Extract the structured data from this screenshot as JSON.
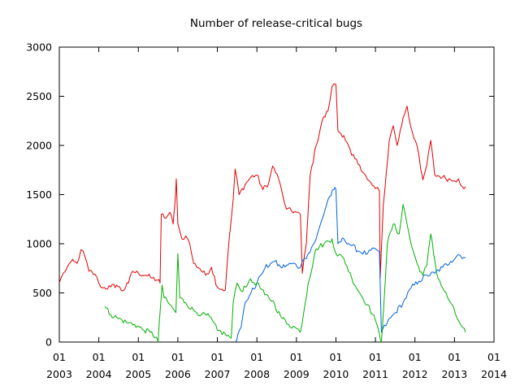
{
  "chart_data": {
    "type": "line",
    "title": "Number of release-critical bugs",
    "xlabel": "",
    "ylabel": "",
    "xlim": [
      2003.0,
      2014.0
    ],
    "ylim": [
      0,
      3000
    ],
    "grid": false,
    "legend": "none",
    "y_ticks": [
      0,
      500,
      1000,
      1500,
      2000,
      2500,
      3000
    ],
    "x_ticks": [
      {
        "value": 2003,
        "month": "01",
        "year": "2003"
      },
      {
        "value": 2004,
        "month": "01",
        "year": "2004"
      },
      {
        "value": 2005,
        "month": "01",
        "year": "2005"
      },
      {
        "value": 2006,
        "month": "01",
        "year": "2006"
      },
      {
        "value": 2007,
        "month": "01",
        "year": "2007"
      },
      {
        "value": 2008,
        "month": "01",
        "year": "2008"
      },
      {
        "value": 2009,
        "month": "01",
        "year": "2009"
      },
      {
        "value": 2010,
        "month": "01",
        "year": "2010"
      },
      {
        "value": 2011,
        "month": "01",
        "year": "2011"
      },
      {
        "value": 2012,
        "month": "01",
        "year": "2012"
      },
      {
        "value": 2013,
        "month": "01",
        "year": "2013"
      },
      {
        "value": 2014,
        "month": "01",
        "year": "2014"
      }
    ],
    "series": [
      {
        "color": "#e00000",
        "points": [
          [
            2003.0,
            600
          ],
          [
            2003.1,
            700
          ],
          [
            2003.2,
            760
          ],
          [
            2003.3,
            820
          ],
          [
            2003.45,
            800
          ],
          [
            2003.55,
            940
          ],
          [
            2003.65,
            870
          ],
          [
            2003.75,
            720
          ],
          [
            2003.9,
            690
          ],
          [
            2004.0,
            600
          ],
          [
            2004.1,
            550
          ],
          [
            2004.3,
            560
          ],
          [
            2004.45,
            580
          ],
          [
            2004.6,
            520
          ],
          [
            2004.75,
            600
          ],
          [
            2004.85,
            720
          ],
          [
            2005.0,
            700
          ],
          [
            2005.2,
            680
          ],
          [
            2005.35,
            650
          ],
          [
            2005.5,
            630
          ],
          [
            2005.55,
            600
          ],
          [
            2005.58,
            1300
          ],
          [
            2005.7,
            1260
          ],
          [
            2005.8,
            1320
          ],
          [
            2005.88,
            1200
          ],
          [
            2005.92,
            1380
          ],
          [
            2005.96,
            1660
          ],
          [
            2006.0,
            1200
          ],
          [
            2006.1,
            1050
          ],
          [
            2006.2,
            1080
          ],
          [
            2006.3,
            1000
          ],
          [
            2006.4,
            800
          ],
          [
            2006.55,
            750
          ],
          [
            2006.7,
            680
          ],
          [
            2006.85,
            760
          ],
          [
            2007.0,
            560
          ],
          [
            2007.2,
            530
          ],
          [
            2007.3,
            1050
          ],
          [
            2007.4,
            1450
          ],
          [
            2007.45,
            1760
          ],
          [
            2007.55,
            1500
          ],
          [
            2007.7,
            1600
          ],
          [
            2007.85,
            1680
          ],
          [
            2008.0,
            1700
          ],
          [
            2008.15,
            1550
          ],
          [
            2008.3,
            1620
          ],
          [
            2008.4,
            1790
          ],
          [
            2008.55,
            1660
          ],
          [
            2008.65,
            1500
          ],
          [
            2008.75,
            1350
          ],
          [
            2009.0,
            1320
          ],
          [
            2009.1,
            1300
          ],
          [
            2009.15,
            700
          ],
          [
            2009.25,
            1000
          ],
          [
            2009.35,
            1700
          ],
          [
            2009.5,
            2000
          ],
          [
            2009.65,
            2250
          ],
          [
            2009.8,
            2350
          ],
          [
            2009.9,
            2600
          ],
          [
            2010.0,
            2620
          ],
          [
            2010.05,
            2150
          ],
          [
            2010.2,
            2100
          ],
          [
            2010.4,
            1900
          ],
          [
            2010.6,
            1800
          ],
          [
            2010.8,
            1650
          ],
          [
            2011.0,
            1560
          ],
          [
            2011.1,
            1540
          ],
          [
            2011.12,
            650
          ],
          [
            2011.2,
            1400
          ],
          [
            2011.35,
            2050
          ],
          [
            2011.45,
            2200
          ],
          [
            2011.55,
            2000
          ],
          [
            2011.7,
            2280
          ],
          [
            2011.8,
            2400
          ],
          [
            2011.9,
            2180
          ],
          [
            2012.05,
            2000
          ],
          [
            2012.15,
            1750
          ],
          [
            2012.2,
            1650
          ],
          [
            2012.3,
            1800
          ],
          [
            2012.4,
            2050
          ],
          [
            2012.5,
            1700
          ],
          [
            2012.7,
            1680
          ],
          [
            2012.9,
            1650
          ],
          [
            2013.0,
            1640
          ],
          [
            2013.1,
            1660
          ],
          [
            2013.2,
            1580
          ],
          [
            2013.28,
            1580
          ]
        ]
      },
      {
        "color": "#0060e0",
        "points": [
          [
            2007.45,
            0
          ],
          [
            2007.6,
            150
          ],
          [
            2007.7,
            400
          ],
          [
            2007.85,
            500
          ],
          [
            2008.0,
            600
          ],
          [
            2008.1,
            680
          ],
          [
            2008.2,
            750
          ],
          [
            2008.35,
            800
          ],
          [
            2008.45,
            820
          ],
          [
            2008.6,
            760
          ],
          [
            2008.75,
            780
          ],
          [
            2008.9,
            800
          ],
          [
            2009.1,
            760
          ],
          [
            2009.2,
            850
          ],
          [
            2009.3,
            900
          ],
          [
            2009.5,
            1050
          ],
          [
            2009.65,
            1250
          ],
          [
            2009.8,
            1450
          ],
          [
            2009.95,
            1550
          ],
          [
            2010.0,
            1550
          ],
          [
            2010.05,
            1000
          ],
          [
            2010.2,
            1050
          ],
          [
            2010.4,
            980
          ],
          [
            2010.6,
            920
          ],
          [
            2010.8,
            900
          ],
          [
            2011.0,
            950
          ],
          [
            2011.1,
            920
          ],
          [
            2011.15,
            100
          ],
          [
            2011.3,
            200
          ],
          [
            2011.5,
            300
          ],
          [
            2011.7,
            400
          ],
          [
            2011.9,
            550
          ],
          [
            2012.1,
            620
          ],
          [
            2012.3,
            680
          ],
          [
            2012.5,
            700
          ],
          [
            2012.7,
            760
          ],
          [
            2012.9,
            820
          ],
          [
            2013.1,
            890
          ],
          [
            2013.28,
            860
          ]
        ]
      },
      {
        "color": "#00b000",
        "points": [
          [
            2004.15,
            360
          ],
          [
            2004.3,
            280
          ],
          [
            2004.5,
            240
          ],
          [
            2004.7,
            200
          ],
          [
            2004.9,
            180
          ],
          [
            2005.1,
            130
          ],
          [
            2005.3,
            100
          ],
          [
            2005.45,
            50
          ],
          [
            2005.5,
            0
          ],
          [
            2005.55,
            300
          ],
          [
            2005.6,
            580
          ],
          [
            2005.65,
            450
          ],
          [
            2005.8,
            380
          ],
          [
            2005.95,
            300
          ],
          [
            2006.0,
            900
          ],
          [
            2006.05,
            450
          ],
          [
            2006.2,
            400
          ],
          [
            2006.4,
            320
          ],
          [
            2006.6,
            280
          ],
          [
            2006.8,
            260
          ],
          [
            2007.0,
            120
          ],
          [
            2007.2,
            80
          ],
          [
            2007.35,
            40
          ],
          [
            2007.4,
            400
          ],
          [
            2007.5,
            600
          ],
          [
            2007.6,
            520
          ],
          [
            2007.8,
            620
          ],
          [
            2008.0,
            600
          ],
          [
            2008.2,
            480
          ],
          [
            2008.4,
            420
          ],
          [
            2008.6,
            260
          ],
          [
            2008.8,
            180
          ],
          [
            2009.0,
            140
          ],
          [
            2009.1,
            100
          ],
          [
            2009.3,
            600
          ],
          [
            2009.5,
            950
          ],
          [
            2009.7,
            1000
          ],
          [
            2009.9,
            1050
          ],
          [
            2010.0,
            900
          ],
          [
            2010.2,
            850
          ],
          [
            2010.4,
            650
          ],
          [
            2010.6,
            500
          ],
          [
            2010.8,
            380
          ],
          [
            2011.0,
            220
          ],
          [
            2011.1,
            80
          ],
          [
            2011.15,
            0
          ],
          [
            2011.2,
            300
          ],
          [
            2011.3,
            1000
          ],
          [
            2011.45,
            1200
          ],
          [
            2011.6,
            1100
          ],
          [
            2011.7,
            1400
          ],
          [
            2011.8,
            1200
          ],
          [
            2011.9,
            1000
          ],
          [
            2012.05,
            800
          ],
          [
            2012.2,
            680
          ],
          [
            2012.3,
            780
          ],
          [
            2012.4,
            1100
          ],
          [
            2012.55,
            700
          ],
          [
            2012.7,
            550
          ],
          [
            2012.9,
            400
          ],
          [
            2013.1,
            220
          ],
          [
            2013.2,
            150
          ],
          [
            2013.28,
            100
          ]
        ]
      }
    ]
  }
}
